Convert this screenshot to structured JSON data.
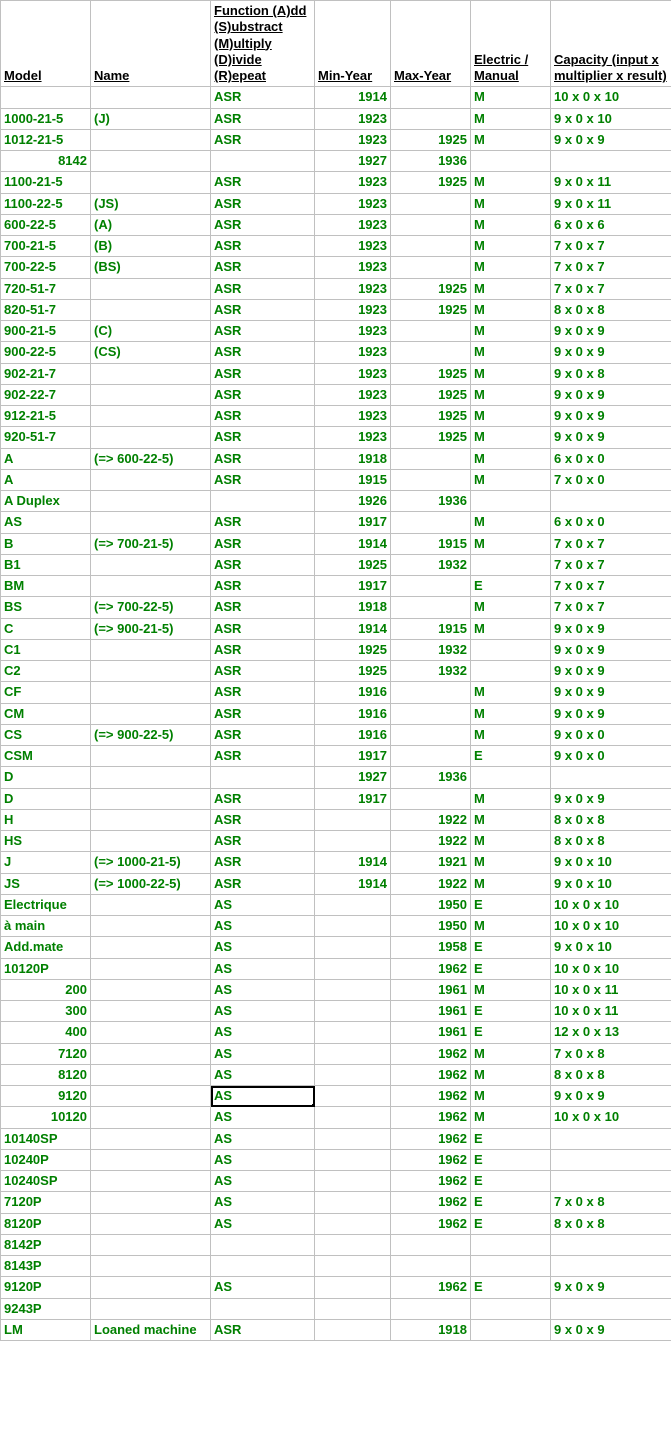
{
  "headers": {
    "model": "Model",
    "name": "Name",
    "func": "Function (A)dd (S)ubstract (M)ultiply (D)ivide (R)epeat",
    "miny": "Min-Year",
    "maxy": "Max-Year",
    "em": "Electric / Manual",
    "cap": "Capacity (input x multiplier x result)"
  },
  "selected_row_index": 47,
  "selected_col_key": "func",
  "columns": [
    "model",
    "name",
    "func",
    "miny",
    "maxy",
    "em",
    "cap"
  ],
  "numeric_cols": [
    "miny",
    "maxy"
  ],
  "maybe_numeric_cols": [
    "model"
  ],
  "rows": [
    {
      "model": "",
      "name": "",
      "func": "ASR",
      "miny": "1914",
      "maxy": "",
      "em": "M",
      "cap": "10 x 0 x 10"
    },
    {
      "model": "1000-21-5",
      "name": "(J)",
      "func": "ASR",
      "miny": "1923",
      "maxy": "",
      "em": "M",
      "cap": "9 x 0 x 10"
    },
    {
      "model": "1012-21-5",
      "name": "",
      "func": "ASR",
      "miny": "1923",
      "maxy": "1925",
      "em": "M",
      "cap": "9 x 0 x 9"
    },
    {
      "model": "8142",
      "name": "",
      "func": "",
      "miny": "1927",
      "maxy": "1936",
      "em": "",
      "cap": ""
    },
    {
      "model": "1100-21-5",
      "name": "",
      "func": "ASR",
      "miny": "1923",
      "maxy": "1925",
      "em": "M",
      "cap": "9 x 0 x 11"
    },
    {
      "model": "1100-22-5",
      "name": "(JS)",
      "func": "ASR",
      "miny": "1923",
      "maxy": "",
      "em": "M",
      "cap": "9 x 0 x 11"
    },
    {
      "model": "600-22-5",
      "name": "(A)",
      "func": "ASR",
      "miny": "1923",
      "maxy": "",
      "em": "M",
      "cap": "6 x 0 x 6"
    },
    {
      "model": "700-21-5",
      "name": "(B)",
      "func": "ASR",
      "miny": "1923",
      "maxy": "",
      "em": "M",
      "cap": "7 x 0 x 7"
    },
    {
      "model": "700-22-5",
      "name": "(BS)",
      "func": "ASR",
      "miny": "1923",
      "maxy": "",
      "em": "M",
      "cap": "7 x 0 x 7"
    },
    {
      "model": "720-51-7",
      "name": "",
      "func": "ASR",
      "miny": "1923",
      "maxy": "1925",
      "em": "M",
      "cap": "7 x 0 x 7"
    },
    {
      "model": "820-51-7",
      "name": "",
      "func": "ASR",
      "miny": "1923",
      "maxy": "1925",
      "em": "M",
      "cap": "8 x 0 x 8"
    },
    {
      "model": "900-21-5",
      "name": "(C)",
      "func": "ASR",
      "miny": "1923",
      "maxy": "",
      "em": "M",
      "cap": "9 x 0 x 9"
    },
    {
      "model": "900-22-5",
      "name": "(CS)",
      "func": "ASR",
      "miny": "1923",
      "maxy": "",
      "em": "M",
      "cap": "9 x 0 x 9"
    },
    {
      "model": "902-21-7",
      "name": "",
      "func": "ASR",
      "miny": "1923",
      "maxy": "1925",
      "em": "M",
      "cap": "9 x 0 x 8"
    },
    {
      "model": "902-22-7",
      "name": "",
      "func": "ASR",
      "miny": "1923",
      "maxy": "1925",
      "em": "M",
      "cap": "9 x 0 x 9"
    },
    {
      "model": "912-21-5",
      "name": "",
      "func": "ASR",
      "miny": "1923",
      "maxy": "1925",
      "em": "M",
      "cap": "9 x 0 x 9"
    },
    {
      "model": "920-51-7",
      "name": "",
      "func": "ASR",
      "miny": "1923",
      "maxy": "1925",
      "em": "M",
      "cap": "9 x 0 x 9"
    },
    {
      "model": "A",
      "name": "(=> 600-22-5)",
      "func": "ASR",
      "miny": "1918",
      "maxy": "",
      "em": "M",
      "cap": "6 x 0 x 0"
    },
    {
      "model": "A",
      "name": "",
      "func": "ASR",
      "miny": "1915",
      "maxy": "",
      "em": "M",
      "cap": "7 x 0 x 0"
    },
    {
      "model": "A Duplex",
      "name": "",
      "func": "",
      "miny": "1926",
      "maxy": "1936",
      "em": "",
      "cap": ""
    },
    {
      "model": "AS",
      "name": "",
      "func": "ASR",
      "miny": "1917",
      "maxy": "",
      "em": "M",
      "cap": "6 x 0 x 0"
    },
    {
      "model": "B",
      "name": "(=> 700-21-5)",
      "func": "ASR",
      "miny": "1914",
      "maxy": "1915",
      "em": "M",
      "cap": "7 x 0 x 7"
    },
    {
      "model": "B1",
      "name": "",
      "func": "ASR",
      "miny": "1925",
      "maxy": "1932",
      "em": "",
      "cap": "7 x 0 x 7"
    },
    {
      "model": "BM",
      "name": "",
      "func": "ASR",
      "miny": "1917",
      "maxy": "",
      "em": "E",
      "cap": "7 x 0 x 7"
    },
    {
      "model": "BS",
      "name": "(=> 700-22-5)",
      "func": "ASR",
      "miny": "1918",
      "maxy": "",
      "em": "M",
      "cap": "7 x 0 x 7"
    },
    {
      "model": "C",
      "name": "(=> 900-21-5)",
      "func": "ASR",
      "miny": "1914",
      "maxy": "1915",
      "em": "M",
      "cap": "9 x 0 x 9"
    },
    {
      "model": "C1",
      "name": "",
      "func": "ASR",
      "miny": "1925",
      "maxy": "1932",
      "em": "",
      "cap": "9 x 0 x 9"
    },
    {
      "model": "C2",
      "name": "",
      "func": "ASR",
      "miny": "1925",
      "maxy": "1932",
      "em": "",
      "cap": "9 x 0 x 9"
    },
    {
      "model": "CF",
      "name": "",
      "func": "ASR",
      "miny": "1916",
      "maxy": "",
      "em": "M",
      "cap": "9 x 0 x 9"
    },
    {
      "model": "CM",
      "name": "",
      "func": "ASR",
      "miny": "1916",
      "maxy": "",
      "em": "M",
      "cap": "9 x 0 x 9"
    },
    {
      "model": "CS",
      "name": "(=> 900-22-5)",
      "func": "ASR",
      "miny": "1916",
      "maxy": "",
      "em": "M",
      "cap": "9 x 0 x 0"
    },
    {
      "model": "CSM",
      "name": "",
      "func": "ASR",
      "miny": "1917",
      "maxy": "",
      "em": "E",
      "cap": "9 x 0 x 0"
    },
    {
      "model": "D",
      "name": "",
      "func": "",
      "miny": "1927",
      "maxy": "1936",
      "em": "",
      "cap": ""
    },
    {
      "model": "D",
      "name": "",
      "func": "ASR",
      "miny": "1917",
      "maxy": "",
      "em": "M",
      "cap": "9 x 0 x 9"
    },
    {
      "model": "H",
      "name": "",
      "func": "ASR",
      "miny": "",
      "maxy": "1922",
      "em": "M",
      "cap": "8 x 0 x 8"
    },
    {
      "model": "HS",
      "name": "",
      "func": "ASR",
      "miny": "",
      "maxy": "1922",
      "em": "M",
      "cap": "8 x 0 x 8"
    },
    {
      "model": "J",
      "name": "(=> 1000-21-5)",
      "func": "ASR",
      "miny": "1914",
      "maxy": "1921",
      "em": "M",
      "cap": "9 x 0 x 10"
    },
    {
      "model": "JS",
      "name": "(=> 1000-22-5)",
      "func": "ASR",
      "miny": "1914",
      "maxy": "1922",
      "em": "M",
      "cap": "9 x 0 x 10"
    },
    {
      "model": "Electrique",
      "name": "",
      "func": "AS",
      "miny": "",
      "maxy": "1950",
      "em": "E",
      "cap": "10 x 0 x 10"
    },
    {
      "model": "à main",
      "name": "",
      "func": "AS",
      "miny": "",
      "maxy": "1950",
      "em": "M",
      "cap": "10 x 0 x 10"
    },
    {
      "model": "Add.mate",
      "name": "",
      "func": "AS",
      "miny": "",
      "maxy": "1958",
      "em": "E",
      "cap": "9 x 0 x 10"
    },
    {
      "model": "10120P",
      "name": "",
      "func": "AS",
      "miny": "",
      "maxy": "1962",
      "em": "E",
      "cap": "10 x 0 x 10"
    },
    {
      "model": "200",
      "name": "",
      "func": "AS",
      "miny": "",
      "maxy": "1961",
      "em": "M",
      "cap": "10 x 0 x 11"
    },
    {
      "model": "300",
      "name": "",
      "func": "AS",
      "miny": "",
      "maxy": "1961",
      "em": "E",
      "cap": "10 x 0 x 11"
    },
    {
      "model": "400",
      "name": "",
      "func": "AS",
      "miny": "",
      "maxy": "1961",
      "em": "E",
      "cap": "12 x 0 x 13"
    },
    {
      "model": "7120",
      "name": "",
      "func": "AS",
      "miny": "",
      "maxy": "1962",
      "em": "M",
      "cap": "7 x 0 x 8"
    },
    {
      "model": "8120",
      "name": "",
      "func": "AS",
      "miny": "",
      "maxy": "1962",
      "em": "M",
      "cap": "8 x 0 x 8"
    },
    {
      "model": "9120",
      "name": "",
      "func": "AS",
      "miny": "",
      "maxy": "1962",
      "em": "M",
      "cap": "9 x 0 x 9"
    },
    {
      "model": "10120",
      "name": "",
      "func": "AS",
      "miny": "",
      "maxy": "1962",
      "em": "M",
      "cap": "10 x 0 x 10"
    },
    {
      "model": "10140SP",
      "name": "",
      "func": "AS",
      "miny": "",
      "maxy": "1962",
      "em": "E",
      "cap": ""
    },
    {
      "model": "10240P",
      "name": "",
      "func": "AS",
      "miny": "",
      "maxy": "1962",
      "em": "E",
      "cap": ""
    },
    {
      "model": "10240SP",
      "name": "",
      "func": "AS",
      "miny": "",
      "maxy": "1962",
      "em": "E",
      "cap": ""
    },
    {
      "model": "7120P",
      "name": "",
      "func": "AS",
      "miny": "",
      "maxy": "1962",
      "em": "E",
      "cap": "7 x 0 x 8"
    },
    {
      "model": "8120P",
      "name": "",
      "func": "AS",
      "miny": "",
      "maxy": "1962",
      "em": "E",
      "cap": "8 x 0 x 8"
    },
    {
      "model": "8142P",
      "name": "",
      "func": "",
      "miny": "",
      "maxy": "",
      "em": "",
      "cap": ""
    },
    {
      "model": "8143P",
      "name": "",
      "func": "",
      "miny": "",
      "maxy": "",
      "em": "",
      "cap": ""
    },
    {
      "model": "9120P",
      "name": "",
      "func": "AS",
      "miny": "",
      "maxy": "1962",
      "em": "E",
      "cap": "9 x 0 x 9"
    },
    {
      "model": "9243P",
      "name": "",
      "func": "",
      "miny": "",
      "maxy": "",
      "em": "",
      "cap": ""
    },
    {
      "model": "LM",
      "name": "Loaned machine",
      "func": "ASR",
      "miny": "",
      "maxy": "1918",
      "em": "",
      "cap": "9 x 0 x 9"
    }
  ]
}
